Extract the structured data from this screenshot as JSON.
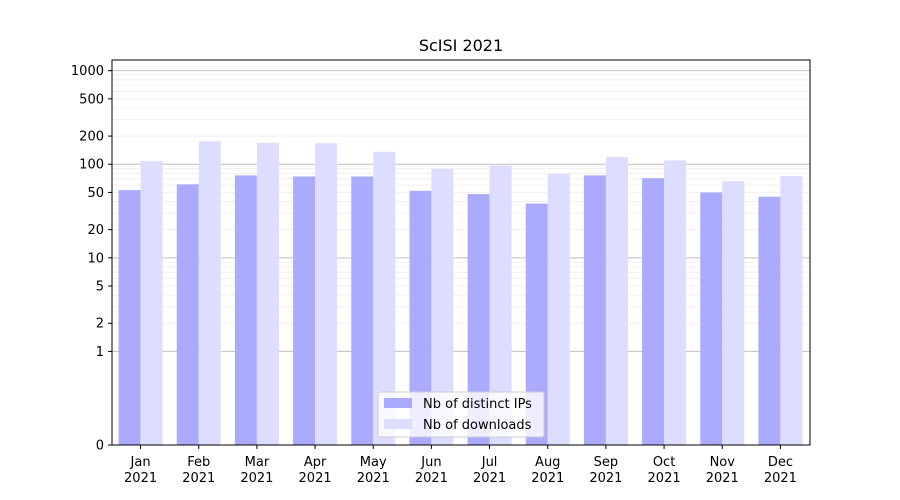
{
  "chart_data": {
    "type": "bar",
    "title": "ScISI 2021",
    "xlabel": "",
    "ylabel": "",
    "yscale": "symlog",
    "ylim": [
      0,
      1300
    ],
    "yticks": [
      0,
      1,
      2,
      5,
      10,
      20,
      50,
      100,
      200,
      500,
      1000
    ],
    "ytick_labels": [
      "0",
      "1",
      "2",
      "5",
      "10",
      "20",
      "50",
      "100",
      "200",
      "500",
      "1000"
    ],
    "grid": true,
    "legend_position": "lower-center",
    "categories": [
      {
        "month": "Jan",
        "year": "2021"
      },
      {
        "month": "Feb",
        "year": "2021"
      },
      {
        "month": "Mar",
        "year": "2021"
      },
      {
        "month": "Apr",
        "year": "2021"
      },
      {
        "month": "May",
        "year": "2021"
      },
      {
        "month": "Jun",
        "year": "2021"
      },
      {
        "month": "Jul",
        "year": "2021"
      },
      {
        "month": "Aug",
        "year": "2021"
      },
      {
        "month": "Sep",
        "year": "2021"
      },
      {
        "month": "Oct",
        "year": "2021"
      },
      {
        "month": "Nov",
        "year": "2021"
      },
      {
        "month": "Dec",
        "year": "2021"
      }
    ],
    "series": [
      {
        "name": "Nb of distinct IPs",
        "color": "#aaaaff",
        "values": [
          53,
          61,
          76,
          74,
          74,
          52,
          48,
          38,
          76,
          71,
          50,
          45
        ]
      },
      {
        "name": "Nb of downloads",
        "color": "#ddddff",
        "values": [
          108,
          176,
          169,
          168,
          136,
          89,
          97,
          79,
          120,
          110,
          66,
          75
        ]
      }
    ]
  }
}
